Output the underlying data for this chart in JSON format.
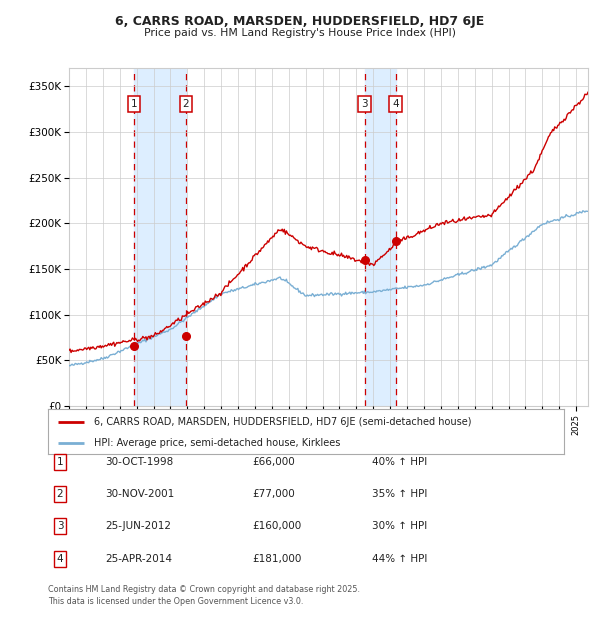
{
  "title_line1": "6, CARRS ROAD, MARSDEN, HUDDERSFIELD, HD7 6JE",
  "title_line2": "Price paid vs. HM Land Registry's House Price Index (HPI)",
  "legend_label_red": "6, CARRS ROAD, MARSDEN, HUDDERSFIELD, HD7 6JE (semi-detached house)",
  "legend_label_blue": "HPI: Average price, semi-detached house, Kirklees",
  "footer": "Contains HM Land Registry data © Crown copyright and database right 2025.\nThis data is licensed under the Open Government Licence v3.0.",
  "transactions": [
    {
      "num": 1,
      "date": "30-OCT-1998",
      "price": 66000,
      "hpi_pct": "40% ↑ HPI",
      "year": 1998.83
    },
    {
      "num": 2,
      "date": "30-NOV-2001",
      "price": 77000,
      "hpi_pct": "35% ↑ HPI",
      "year": 2001.92
    },
    {
      "num": 3,
      "date": "25-JUN-2012",
      "price": 160000,
      "hpi_pct": "30% ↑ HPI",
      "year": 2012.48
    },
    {
      "num": 4,
      "date": "25-APR-2014",
      "price": 181000,
      "hpi_pct": "44% ↑ HPI",
      "year": 2014.32
    }
  ],
  "color_red": "#cc0000",
  "color_blue": "#7aafd4",
  "color_shade": "#ddeeff",
  "ylim": [
    0,
    370000
  ],
  "yticks": [
    0,
    50000,
    100000,
    150000,
    200000,
    250000,
    300000,
    350000
  ],
  "ytick_labels": [
    "£0",
    "£50K",
    "£100K",
    "£150K",
    "£200K",
    "£250K",
    "£300K",
    "£350K"
  ],
  "xstart": 1995.0,
  "xend": 2025.7,
  "bg_color": "#ffffff",
  "grid_color": "#cccccc"
}
